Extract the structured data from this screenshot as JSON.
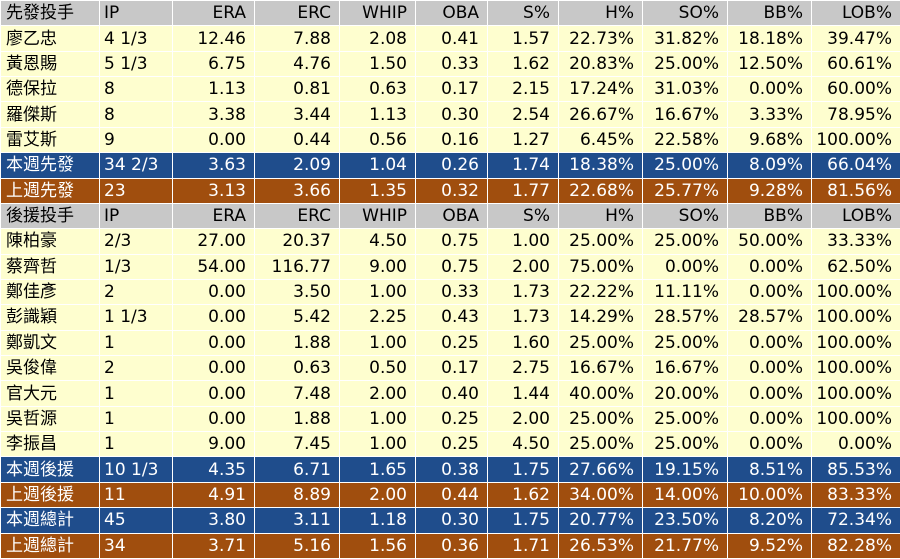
{
  "columns": [
    "IP",
    "ERA",
    "ERC",
    "WHIP",
    "OBA",
    "S%",
    "H%",
    "SO%",
    "BB%",
    "LOB%"
  ],
  "sections": [
    {
      "header": "先發投手",
      "rows": [
        [
          "廖乙忠",
          "4 1/3",
          "12.46",
          "7.88",
          "2.08",
          "0.41",
          "1.57",
          "22.73%",
          "31.82%",
          "18.18%",
          "39.47%"
        ],
        [
          "黃恩賜",
          "5 1/3",
          "6.75",
          "4.76",
          "1.50",
          "0.33",
          "1.62",
          "20.83%",
          "25.00%",
          "12.50%",
          "60.61%"
        ],
        [
          "德保拉",
          "8",
          "1.13",
          "0.81",
          "0.63",
          "0.17",
          "2.15",
          "17.24%",
          "31.03%",
          "0.00%",
          "60.00%"
        ],
        [
          "羅傑斯",
          "8",
          "3.38",
          "3.44",
          "1.13",
          "0.30",
          "2.54",
          "26.67%",
          "16.67%",
          "3.33%",
          "78.95%"
        ],
        [
          "雷艾斯",
          "9",
          "0.00",
          "0.44",
          "0.56",
          "0.16",
          "1.27",
          "6.45%",
          "22.58%",
          "9.68%",
          "100.00%"
        ]
      ],
      "summaries": [
        {
          "style": "blue",
          "cells": [
            "本週先發",
            "34 2/3",
            "3.63",
            "2.09",
            "1.04",
            "0.26",
            "1.74",
            "18.38%",
            "25.00%",
            "8.09%",
            "66.04%"
          ]
        },
        {
          "style": "brown",
          "cells": [
            "上週先發",
            "23",
            "3.13",
            "3.66",
            "1.35",
            "0.32",
            "1.77",
            "22.68%",
            "25.77%",
            "9.28%",
            "81.56%"
          ]
        }
      ]
    },
    {
      "header": "後援投手",
      "rows": [
        [
          "陳柏豪",
          "2/3",
          "27.00",
          "20.37",
          "4.50",
          "0.75",
          "1.00",
          "25.00%",
          "25.00%",
          "50.00%",
          "33.33%"
        ],
        [
          "蔡齊哲",
          "1/3",
          "54.00",
          "116.77",
          "9.00",
          "0.75",
          "2.00",
          "75.00%",
          "0.00%",
          "0.00%",
          "62.50%"
        ],
        [
          "鄭佳彥",
          "2",
          "0.00",
          "3.50",
          "1.00",
          "0.33",
          "1.73",
          "22.22%",
          "11.11%",
          "0.00%",
          "100.00%"
        ],
        [
          "彭識穎",
          "1 1/3",
          "0.00",
          "5.42",
          "2.25",
          "0.43",
          "1.73",
          "14.29%",
          "28.57%",
          "28.57%",
          "100.00%"
        ],
        [
          "鄭凱文",
          "1",
          "0.00",
          "1.88",
          "1.00",
          "0.25",
          "1.60",
          "25.00%",
          "25.00%",
          "0.00%",
          "100.00%"
        ],
        [
          "吳俊偉",
          "2",
          "0.00",
          "0.63",
          "0.50",
          "0.17",
          "2.75",
          "16.67%",
          "16.67%",
          "0.00%",
          "100.00%"
        ],
        [
          "官大元",
          "1",
          "0.00",
          "7.48",
          "2.00",
          "0.40",
          "1.44",
          "40.00%",
          "20.00%",
          "0.00%",
          "100.00%"
        ],
        [
          "吳哲源",
          "1",
          "0.00",
          "1.88",
          "1.00",
          "0.25",
          "2.00",
          "25.00%",
          "25.00%",
          "0.00%",
          "100.00%"
        ],
        [
          "李振昌",
          "1",
          "9.00",
          "7.45",
          "1.00",
          "0.25",
          "4.50",
          "25.00%",
          "25.00%",
          "0.00%",
          "0.00%"
        ]
      ],
      "summaries": [
        {
          "style": "blue",
          "cells": [
            "本週後援",
            "10 1/3",
            "4.35",
            "6.71",
            "1.65",
            "0.38",
            "1.75",
            "27.66%",
            "19.15%",
            "8.51%",
            "85.53%"
          ]
        },
        {
          "style": "brown",
          "cells": [
            "上週後援",
            "11",
            "4.91",
            "8.89",
            "2.00",
            "0.44",
            "1.62",
            "34.00%",
            "14.00%",
            "10.00%",
            "83.33%"
          ]
        }
      ]
    }
  ],
  "totals": [
    {
      "style": "blue",
      "cells": [
        "本週總計",
        "45",
        "3.80",
        "3.11",
        "1.18",
        "0.30",
        "1.75",
        "20.77%",
        "23.50%",
        "8.20%",
        "72.34%"
      ]
    },
    {
      "style": "brown",
      "cells": [
        "上週總計",
        "34",
        "3.71",
        "5.16",
        "1.56",
        "0.36",
        "1.71",
        "26.53%",
        "21.77%",
        "9.52%",
        "82.28%"
      ]
    }
  ],
  "colors": {
    "header": "#c8c8c8",
    "row": "#fefecf",
    "blue": "#1f4d8c",
    "brown": "#a04e0e"
  }
}
